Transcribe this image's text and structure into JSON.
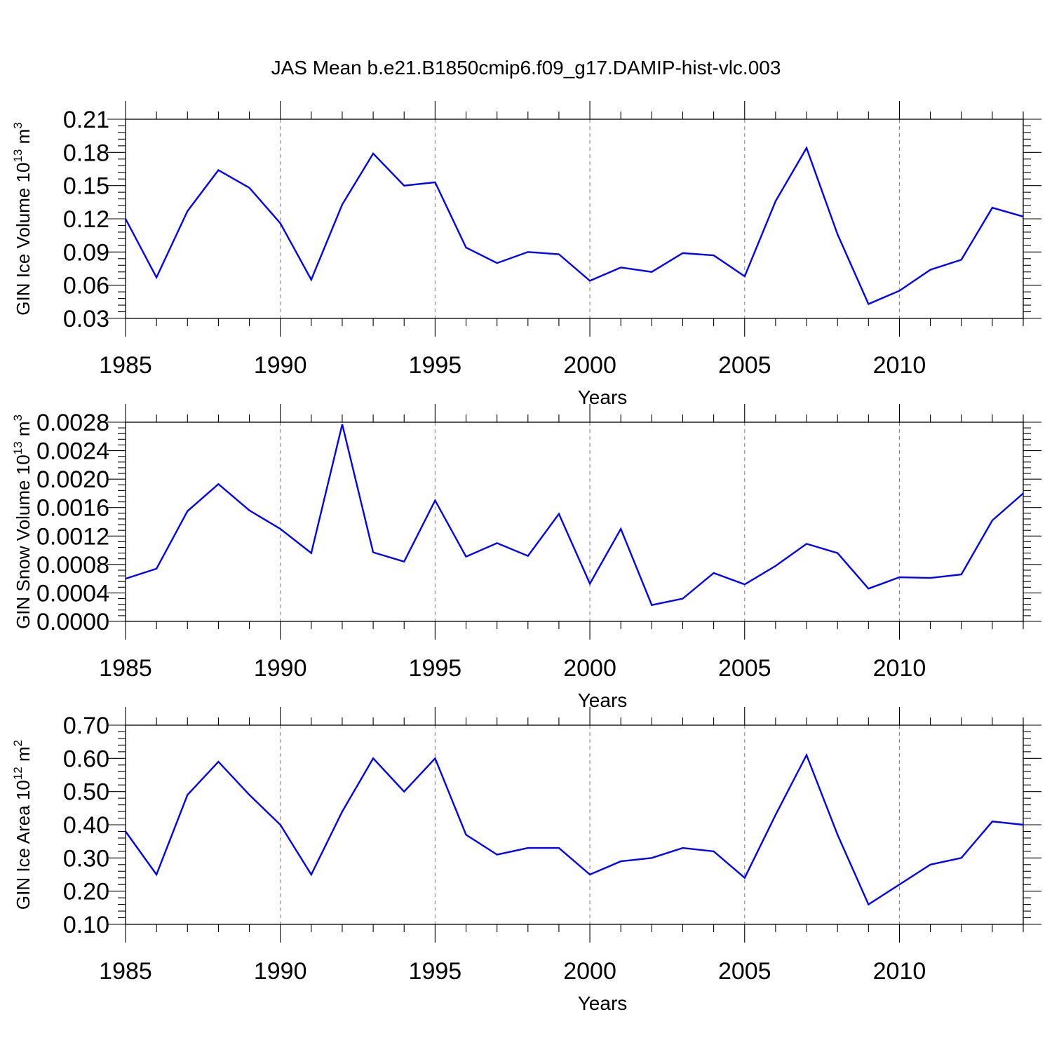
{
  "title": "JAS Mean b.e21.B1850cmip6.f09_g17.DAMIP-hist-vlc.003",
  "colors": {
    "series": "#0000ff",
    "axes": "#000000",
    "grid": "#888888"
  },
  "chart_data": [
    {
      "type": "line",
      "ylabel": "GIN Ice Volume 10",
      "ylabel_exponent": "13",
      "ylabel_unit": "m",
      "ylabel_unit_exponent": "3",
      "xlabel": "Years",
      "xlim": [
        1985,
        2014
      ],
      "ylim": [
        0.03,
        0.21
      ],
      "xticks": [
        1985,
        1990,
        1995,
        2000,
        2005,
        2010
      ],
      "xtick_labels": [
        "1985",
        "1990",
        "1995",
        "2000",
        "2005",
        "2010"
      ],
      "yticks": [
        0.03,
        0.06,
        0.09,
        0.12,
        0.15,
        0.18,
        0.21
      ],
      "ytick_labels": [
        "0.03",
        "0.06",
        "0.09",
        "0.12",
        "0.15",
        "0.18",
        "0.21"
      ],
      "grid_x": true,
      "x": [
        1985,
        1986,
        1987,
        1988,
        1989,
        1990,
        1991,
        1992,
        1993,
        1994,
        1995,
        1996,
        1997,
        1998,
        1999,
        2000,
        2001,
        2002,
        2003,
        2004,
        2005,
        2006,
        2007,
        2008,
        2009,
        2010,
        2011,
        2012,
        2013,
        2014
      ],
      "values": [
        0.12,
        0.067,
        0.127,
        0.164,
        0.148,
        0.116,
        0.065,
        0.133,
        0.179,
        0.15,
        0.153,
        0.094,
        0.08,
        0.09,
        0.088,
        0.064,
        0.076,
        0.072,
        0.089,
        0.087,
        0.068,
        0.136,
        0.184,
        0.106,
        0.043,
        0.055,
        0.074,
        0.083,
        0.13,
        0.122
      ]
    },
    {
      "type": "line",
      "ylabel": "GIN Snow Volume 10",
      "ylabel_exponent": "13",
      "ylabel_unit": "m",
      "ylabel_unit_exponent": "3",
      "xlabel": "Years",
      "xlim": [
        1985,
        2014
      ],
      "ylim": [
        0.0,
        0.0028
      ],
      "xticks": [
        1985,
        1990,
        1995,
        2000,
        2005,
        2010
      ],
      "xtick_labels": [
        "1985",
        "1990",
        "1995",
        "2000",
        "2005",
        "2010"
      ],
      "yticks": [
        0.0,
        0.0004,
        0.0008,
        0.0012,
        0.0016,
        0.002,
        0.0024,
        0.0028
      ],
      "ytick_labels": [
        "0.0000",
        "0.0004",
        "0.0008",
        "0.0012",
        "0.0016",
        "0.0020",
        "0.0024",
        "0.0028"
      ],
      "grid_x": true,
      "x": [
        1985,
        1986,
        1987,
        1988,
        1989,
        1990,
        1991,
        1992,
        1993,
        1994,
        1995,
        1996,
        1997,
        1998,
        1999,
        2000,
        2001,
        2002,
        2003,
        2004,
        2005,
        2006,
        2007,
        2008,
        2009,
        2010,
        2011,
        2012,
        2013,
        2014
      ],
      "values": [
        0.0006,
        0.00074,
        0.00155,
        0.00193,
        0.00156,
        0.0013,
        0.00096,
        0.00277,
        0.00097,
        0.00084,
        0.0017,
        0.00091,
        0.0011,
        0.00092,
        0.00151,
        0.00053,
        0.0013,
        0.00023,
        0.00032,
        0.00068,
        0.00052,
        0.00078,
        0.00109,
        0.00096,
        0.00046,
        0.00062,
        0.00061,
        0.00066,
        0.00142,
        0.0018
      ]
    },
    {
      "type": "line",
      "ylabel": "GIN Ice Area 10",
      "ylabel_exponent": "12",
      "ylabel_unit": "m",
      "ylabel_unit_exponent": "2",
      "xlabel": "Years",
      "xlim": [
        1985,
        2014
      ],
      "ylim": [
        0.1,
        0.7
      ],
      "xticks": [
        1985,
        1990,
        1995,
        2000,
        2005,
        2010
      ],
      "xtick_labels": [
        "1985",
        "1990",
        "1995",
        "2000",
        "2005",
        "2010"
      ],
      "yticks": [
        0.1,
        0.2,
        0.3,
        0.4,
        0.5,
        0.6,
        0.7
      ],
      "ytick_labels": [
        "0.10",
        "0.20",
        "0.30",
        "0.40",
        "0.50",
        "0.60",
        "0.70"
      ],
      "grid_x": true,
      "x": [
        1985,
        1986,
        1987,
        1988,
        1989,
        1990,
        1991,
        1992,
        1993,
        1994,
        1995,
        1996,
        1997,
        1998,
        1999,
        2000,
        2001,
        2002,
        2003,
        2004,
        2005,
        2006,
        2007,
        2008,
        2009,
        2010,
        2011,
        2012,
        2013,
        2014
      ],
      "values": [
        0.38,
        0.25,
        0.49,
        0.59,
        0.49,
        0.4,
        0.25,
        0.44,
        0.6,
        0.5,
        0.6,
        0.37,
        0.31,
        0.33,
        0.33,
        0.25,
        0.29,
        0.3,
        0.33,
        0.32,
        0.24,
        0.43,
        0.61,
        0.37,
        0.16,
        0.22,
        0.28,
        0.3,
        0.41,
        0.4
      ]
    }
  ]
}
